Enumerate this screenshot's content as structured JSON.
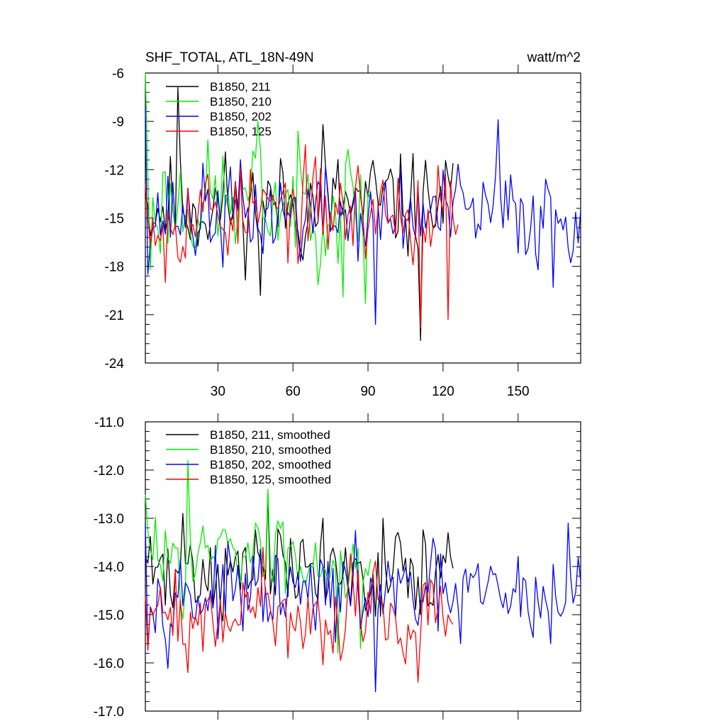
{
  "chart_data": [
    {
      "type": "line",
      "title": "SHF_TOTAL, ATL_18N-49N",
      "units": "watt/m^2",
      "xlabel": "",
      "ylabel": "",
      "xlim": [
        1,
        175
      ],
      "ylim": [
        -24,
        -6
      ],
      "y_ticks": [
        -24,
        -21,
        -18,
        -15,
        -12,
        -9,
        -6
      ],
      "y_tick_labels": [
        "-24",
        "-21",
        "-18",
        "-15",
        "-12",
        "-9",
        "-6"
      ],
      "x_ticks": [
        30,
        60,
        90,
        120,
        150
      ],
      "x_tick_labels": [
        "30",
        "60",
        "90",
        "120",
        "150"
      ],
      "legend_position": "top-left",
      "series": [
        {
          "name": "B1850, 211",
          "color": "#000000",
          "length": 124,
          "mean": -14.2,
          "amp": 1.6,
          "seed": 11,
          "anchors": [
            [
              1,
              -13.5
            ],
            [
              14,
              -6.9
            ],
            [
              47,
              -19.8
            ],
            [
              72,
              -9.2
            ],
            [
              111,
              -22.6
            ],
            [
              124,
              -11.6
            ]
          ]
        },
        {
          "name": "B1850, 210",
          "color": "#00ee00",
          "length": 91,
          "mean": -14.0,
          "amp": 1.8,
          "seed": 23,
          "anchors": [
            [
              1,
              -6.0
            ],
            [
              3,
              -18.2
            ],
            [
              46,
              -9.0
            ],
            [
              80,
              -19.9
            ],
            [
              89,
              -20.3
            ]
          ]
        },
        {
          "name": "B1850, 202",
          "color": "#0000ff",
          "length": 175,
          "mean": -14.8,
          "amp": 1.5,
          "seed": 37,
          "anchors": [
            [
              1,
              -8.1
            ],
            [
              93,
              -21.6
            ],
            [
              142,
              -8.9
            ],
            [
              164,
              -19.3
            ],
            [
              175,
              -14.5
            ]
          ]
        },
        {
          "name": "B1850, 125",
          "color": "#ff0000",
          "length": 126,
          "mean": -14.6,
          "amp": 1.5,
          "seed": 53,
          "anchors": [
            [
              1,
              -12.9
            ],
            [
              9,
              -19.0
            ],
            [
              111,
              -21.8
            ],
            [
              122,
              -21.3
            ],
            [
              126,
              -15.4
            ]
          ]
        }
      ]
    },
    {
      "type": "line",
      "title": "",
      "xlabel": "",
      "ylabel": "",
      "xlim": [
        1,
        175
      ],
      "ylim": [
        -17.0,
        -11.0
      ],
      "y_ticks": [
        -17.0,
        -16.0,
        -15.0,
        -14.0,
        -13.0,
        -12.0,
        -11.0
      ],
      "y_tick_labels": [
        "-17.0",
        "-16.0",
        "-15.0",
        "-14.0",
        "-13.0",
        "-12.0",
        "-11.0"
      ],
      "x_ticks": [
        30,
        60,
        90,
        120,
        150
      ],
      "legend_position": "top-left",
      "series": [
        {
          "name": "B1850, 211, smoothed",
          "color": "#000000",
          "length": 124,
          "mean": -14.1,
          "amp": 0.45,
          "seed": 71,
          "anchors": [
            [
              1,
              -13.8
            ],
            [
              9,
              -14.8
            ],
            [
              16,
              -12.9
            ],
            [
              50,
              -12.5
            ],
            [
              72,
              -13.0
            ],
            [
              83,
              -14.8
            ],
            [
              96,
              -13.0
            ],
            [
              111,
              -15.0
            ],
            [
              122,
              -13.3
            ]
          ]
        },
        {
          "name": "B1850, 210, smoothed",
          "color": "#00ee00",
          "length": 91,
          "mean": -13.8,
          "amp": 0.4,
          "seed": 83,
          "anchors": [
            [
              1,
              -12.5
            ],
            [
              8,
              -14.3
            ],
            [
              18,
              -11.8
            ],
            [
              50,
              -12.4
            ],
            [
              78,
              -15.8
            ],
            [
              87,
              -15.7
            ]
          ]
        },
        {
          "name": "B1850, 202, smoothed",
          "color": "#0000ff",
          "length": 175,
          "mean": -14.6,
          "amp": 0.45,
          "seed": 97,
          "anchors": [
            [
              1,
              -13.1
            ],
            [
              55,
              -15.0
            ],
            [
              93,
              -16.6
            ],
            [
              127,
              -15.6
            ],
            [
              163,
              -15.6
            ],
            [
              170,
              -13.1
            ],
            [
              175,
              -14.3
            ]
          ]
        },
        {
          "name": "B1850, 125, smoothed",
          "color": "#ff0000",
          "length": 124,
          "mean": -15.0,
          "amp": 0.45,
          "seed": 109,
          "anchors": [
            [
              1,
              -14.6
            ],
            [
              18,
              -16.2
            ],
            [
              48,
              -13.6
            ],
            [
              58,
              -15.9
            ],
            [
              76,
              -15.8
            ],
            [
              110,
              -16.4
            ],
            [
              124,
              -15.2
            ]
          ]
        }
      ]
    }
  ]
}
